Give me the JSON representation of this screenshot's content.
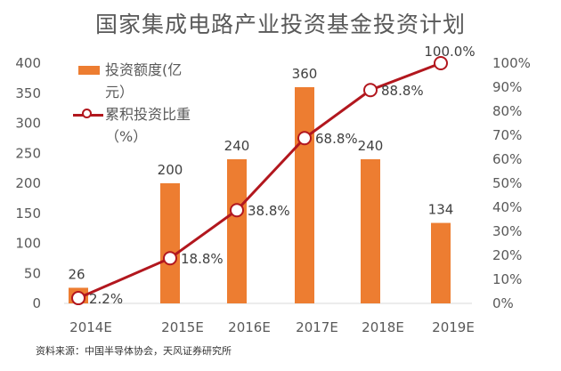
{
  "chart_data": {
    "type": "bar+line",
    "title": "国家集成电路产业投资基金投资计划",
    "categories": [
      "2014E",
      "2015E",
      "2016E",
      "2017E",
      "2018E",
      "2019E"
    ],
    "series": [
      {
        "name": "投资额度(亿元）",
        "type": "bar",
        "axis": "left",
        "values": [
          26,
          200,
          240,
          360,
          240,
          134
        ],
        "labels": [
          "26",
          "200",
          "240",
          "360",
          "240",
          "134"
        ],
        "color": "#ED7D31"
      },
      {
        "name": "累积投资比重（%）",
        "type": "line",
        "axis": "right",
        "values": [
          2.2,
          18.8,
          38.8,
          68.8,
          88.8,
          100.0
        ],
        "labels": [
          "2.2%",
          "18.8%",
          "38.8%",
          "68.8%",
          "88.8%",
          "100.0%"
        ],
        "color": "#B2171E"
      }
    ],
    "left_axis": {
      "ylim": [
        0,
        400
      ],
      "ticks": [
        "0",
        "50",
        "100",
        "150",
        "200",
        "250",
        "300",
        "350",
        "400"
      ]
    },
    "right_axis": {
      "ylim": [
        0,
        100
      ],
      "ticks": [
        "0%",
        "10%",
        "20%",
        "30%",
        "40%",
        "50%",
        "60%",
        "70%",
        "80%",
        "90%",
        "100%"
      ]
    },
    "grid": false,
    "legend": "top-left"
  },
  "source": "资料来源：中国半导体协会，天风证券研究所"
}
